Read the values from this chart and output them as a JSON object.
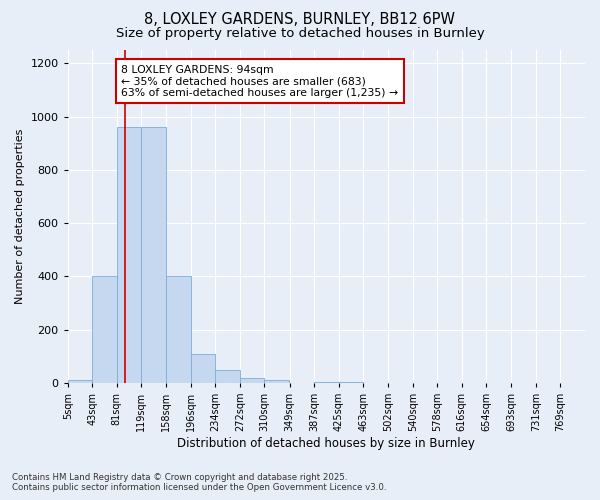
{
  "title_line1": "8, LOXLEY GARDENS, BURNLEY, BB12 6PW",
  "title_line2": "Size of property relative to detached houses in Burnley",
  "xlabel": "Distribution of detached houses by size in Burnley",
  "ylabel": "Number of detached properties",
  "bar_color": "#c5d8f0",
  "bar_edge_color": "#7bafd4",
  "background_color": "#e8eef8",
  "grid_color": "#ffffff",
  "bins": [
    5,
    43,
    81,
    119,
    158,
    196,
    234,
    272,
    310,
    349,
    387,
    425,
    463,
    502,
    540,
    578,
    616,
    654,
    693,
    731,
    769
  ],
  "counts": [
    10,
    400,
    960,
    960,
    400,
    110,
    50,
    20,
    10,
    0,
    5,
    5,
    0,
    0,
    0,
    0,
    0,
    0,
    0,
    0
  ],
  "property_size": 94,
  "red_line_color": "#cc0000",
  "annotation_text": "8 LOXLEY GARDENS: 94sqm\n← 35% of detached houses are smaller (683)\n63% of semi-detached houses are larger (1,235) →",
  "annotation_box_color": "#ffffff",
  "annotation_box_edge_color": "#cc0000",
  "footer_line1": "Contains HM Land Registry data © Crown copyright and database right 2025.",
  "footer_line2": "Contains public sector information licensed under the Open Government Licence v3.0.",
  "ylim": [
    0,
    1250
  ],
  "title_fontsize": 10.5,
  "subtitle_fontsize": 9.5,
  "yticks": [
    0,
    200,
    400,
    600,
    800,
    1000,
    1200
  ],
  "tick_labels": [
    "5sqm",
    "43sqm",
    "81sqm",
    "119sqm",
    "158sqm",
    "196sqm",
    "234sqm",
    "272sqm",
    "310sqm",
    "349sqm",
    "387sqm",
    "425sqm",
    "463sqm",
    "502sqm",
    "540sqm",
    "578sqm",
    "616sqm",
    "654sqm",
    "693sqm",
    "731sqm",
    "769sqm"
  ]
}
